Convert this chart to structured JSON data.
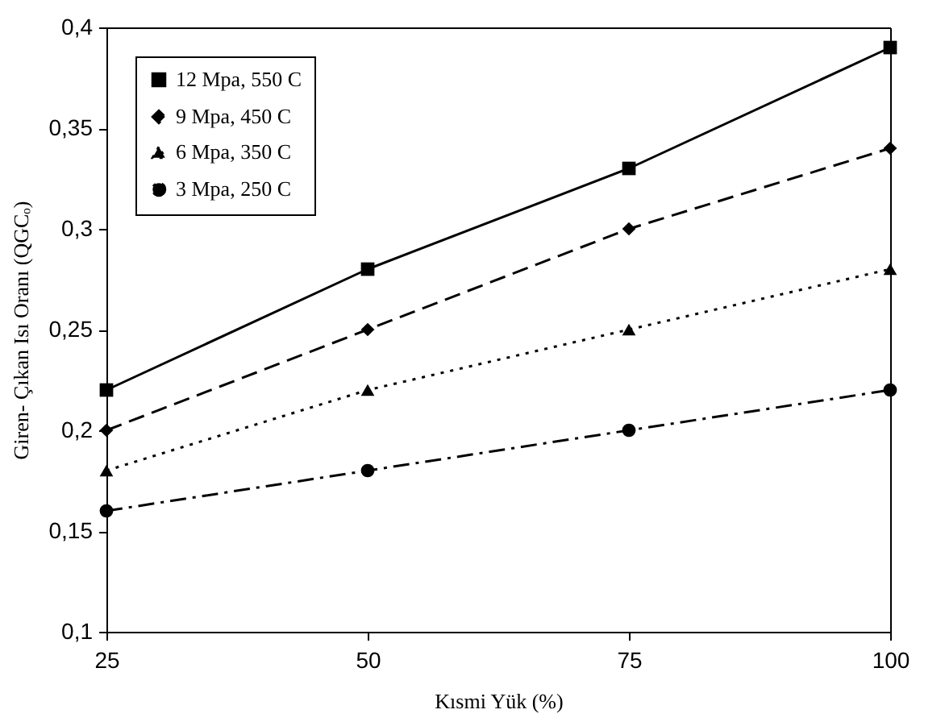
{
  "chart_data": {
    "type": "line",
    "xlabel": "Kısmi Yük (%)",
    "ylabel": "Giren- Çıkan Isı Oranı (QGCₒ)",
    "x": [
      25,
      50,
      75,
      100
    ],
    "series": [
      {
        "name": "12 Mpa, 550 C",
        "color": "#000000",
        "values": [
          0.22,
          0.28,
          0.33,
          0.39
        ],
        "marker": "square",
        "line_style": "solid"
      },
      {
        "name": "9 Mpa, 450 C",
        "color": "#000000",
        "values": [
          0.2,
          0.25,
          0.3,
          0.34
        ],
        "marker": "diamond",
        "line_style": "dashed"
      },
      {
        "name": "6 Mpa, 350 C",
        "color": "#000000",
        "values": [
          0.18,
          0.22,
          0.25,
          0.28
        ],
        "marker": "triangle",
        "line_style": "dotted"
      },
      {
        "name": "3 Mpa, 250 C",
        "color": "#000000",
        "values": [
          0.16,
          0.18,
          0.2,
          0.22
        ],
        "marker": "circle",
        "line_style": "dashdot"
      }
    ],
    "xlim": [
      25,
      100
    ],
    "xticks": [
      25,
      50,
      75,
      100
    ],
    "ylim": [
      0.1,
      0.4
    ],
    "yticks": [
      {
        "value": 0.1,
        "label": "0,1"
      },
      {
        "value": 0.15,
        "label": "0,15"
      },
      {
        "value": 0.2,
        "label": "0,2"
      },
      {
        "value": 0.25,
        "label": "0,25"
      },
      {
        "value": 0.3,
        "label": "0,3"
      },
      {
        "value": 0.35,
        "label": "0,35"
      },
      {
        "value": 0.4,
        "label": "0,4"
      }
    ],
    "grid": false,
    "legend": "top left"
  }
}
